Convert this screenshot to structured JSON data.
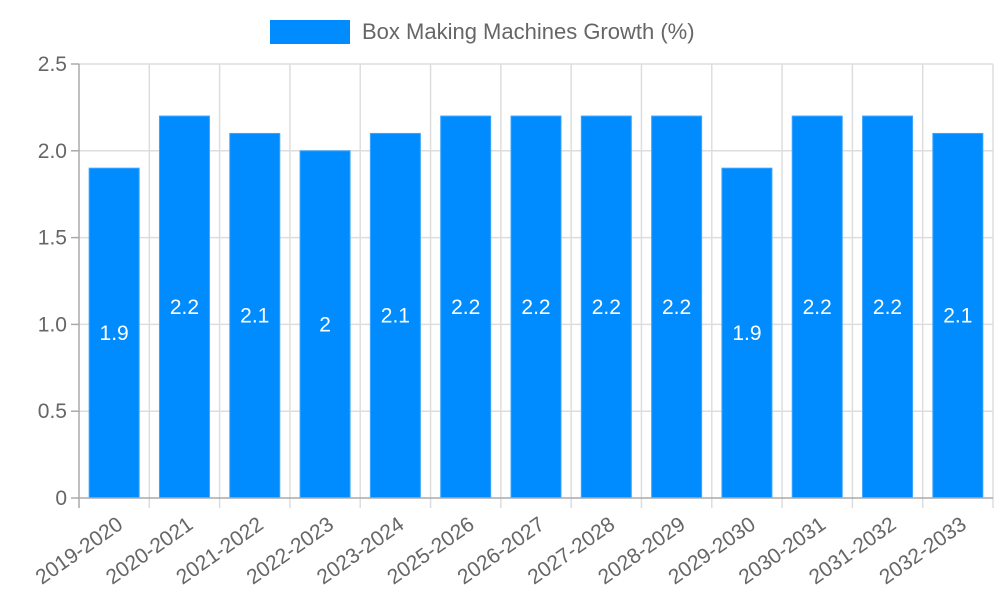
{
  "chart_data": {
    "type": "bar",
    "title": "",
    "xlabel": "",
    "ylabel": "",
    "ylim": [
      0,
      2.5
    ],
    "yticks": [
      "0",
      "0.5",
      "1.0",
      "1.5",
      "2.0",
      "2.5"
    ],
    "grid": true,
    "legend_position": "top",
    "categories": [
      "2019-2020",
      "2020-2021",
      "2021-2022",
      "2022-2023",
      "2023-2024",
      "2025-2026",
      "2026-2027",
      "2027-2028",
      "2028-2029",
      "2029-2030",
      "2030-2031",
      "2031-2032",
      "2032-2033"
    ],
    "series": [
      {
        "name": "Box Making Machines Growth (%)",
        "color": "#008cff",
        "values": [
          1.9,
          2.2,
          2.1,
          2.0,
          2.1,
          2.2,
          2.2,
          2.2,
          2.2,
          1.9,
          2.2,
          2.2,
          2.1
        ],
        "data_labels": [
          "1.9",
          "2.2",
          "2.1",
          "2",
          "2.1",
          "2.2",
          "2.2",
          "2.2",
          "2.2",
          "1.9",
          "2.2",
          "2.2",
          "2.1"
        ]
      }
    ]
  },
  "legend": {
    "label": "Box Making Machines Growth (%)",
    "color": "#008cff"
  }
}
